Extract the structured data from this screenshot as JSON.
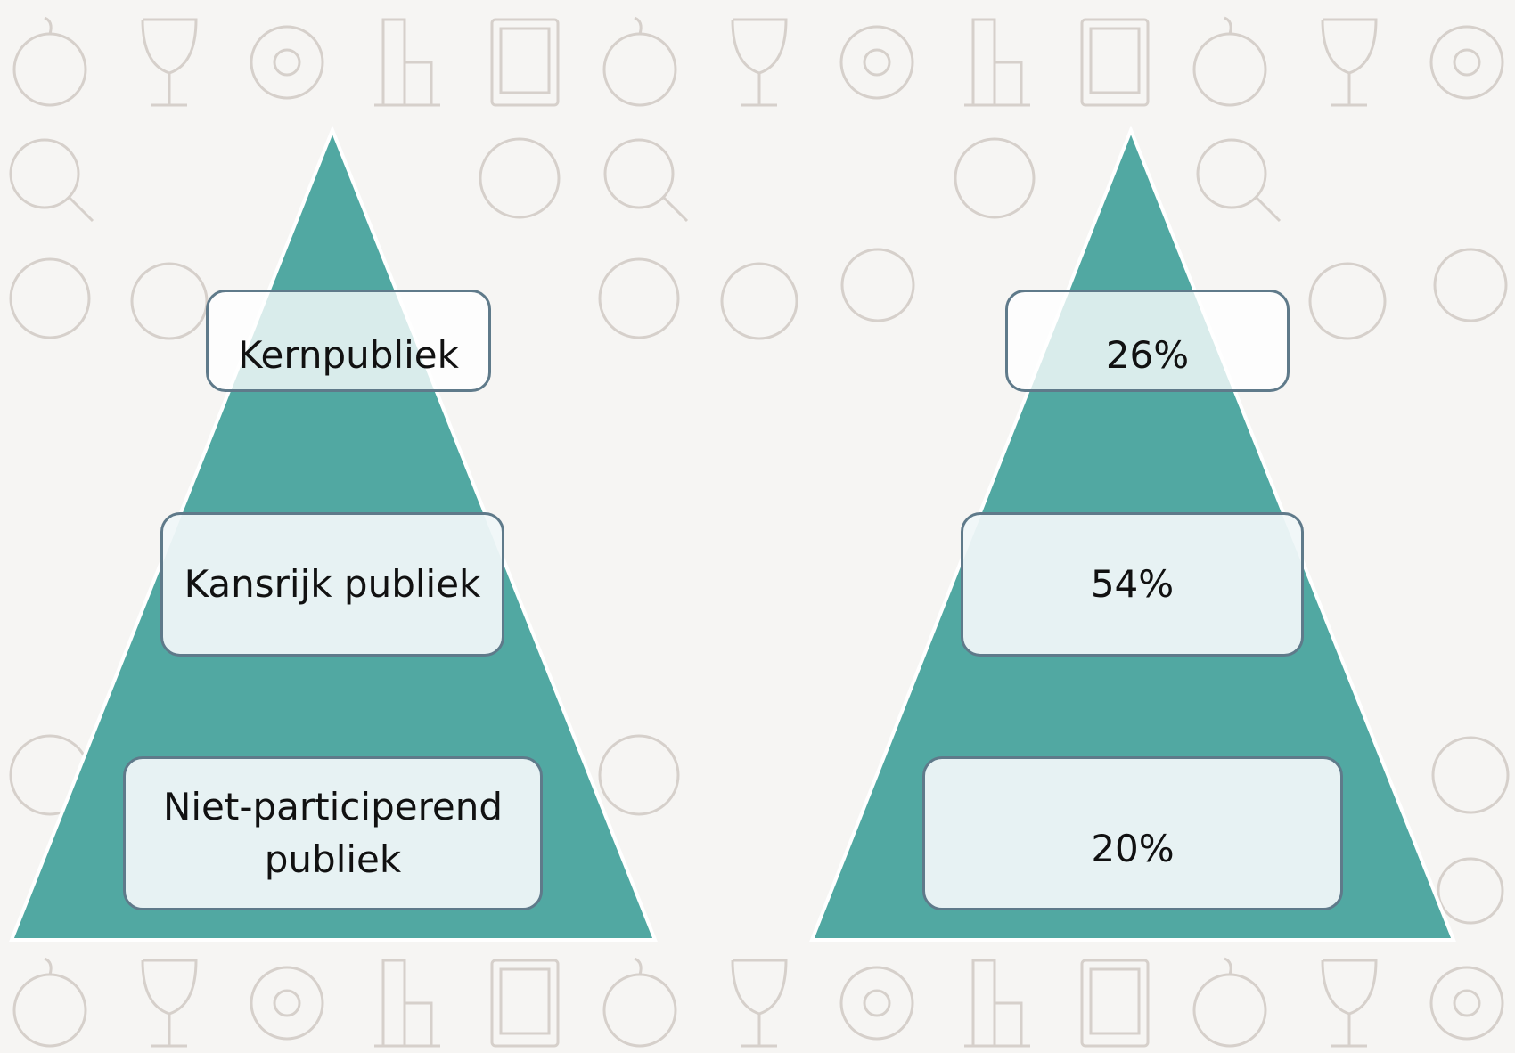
{
  "left_pyramid": {
    "levels": [
      {
        "label": "Kernpubliek"
      },
      {
        "label": "Kansrijk publiek"
      },
      {
        "label": "Niet-participerend publiek"
      }
    ]
  },
  "right_pyramid": {
    "levels": [
      {
        "label": "26%"
      },
      {
        "label": "54%"
      },
      {
        "label": "20%"
      }
    ]
  }
}
